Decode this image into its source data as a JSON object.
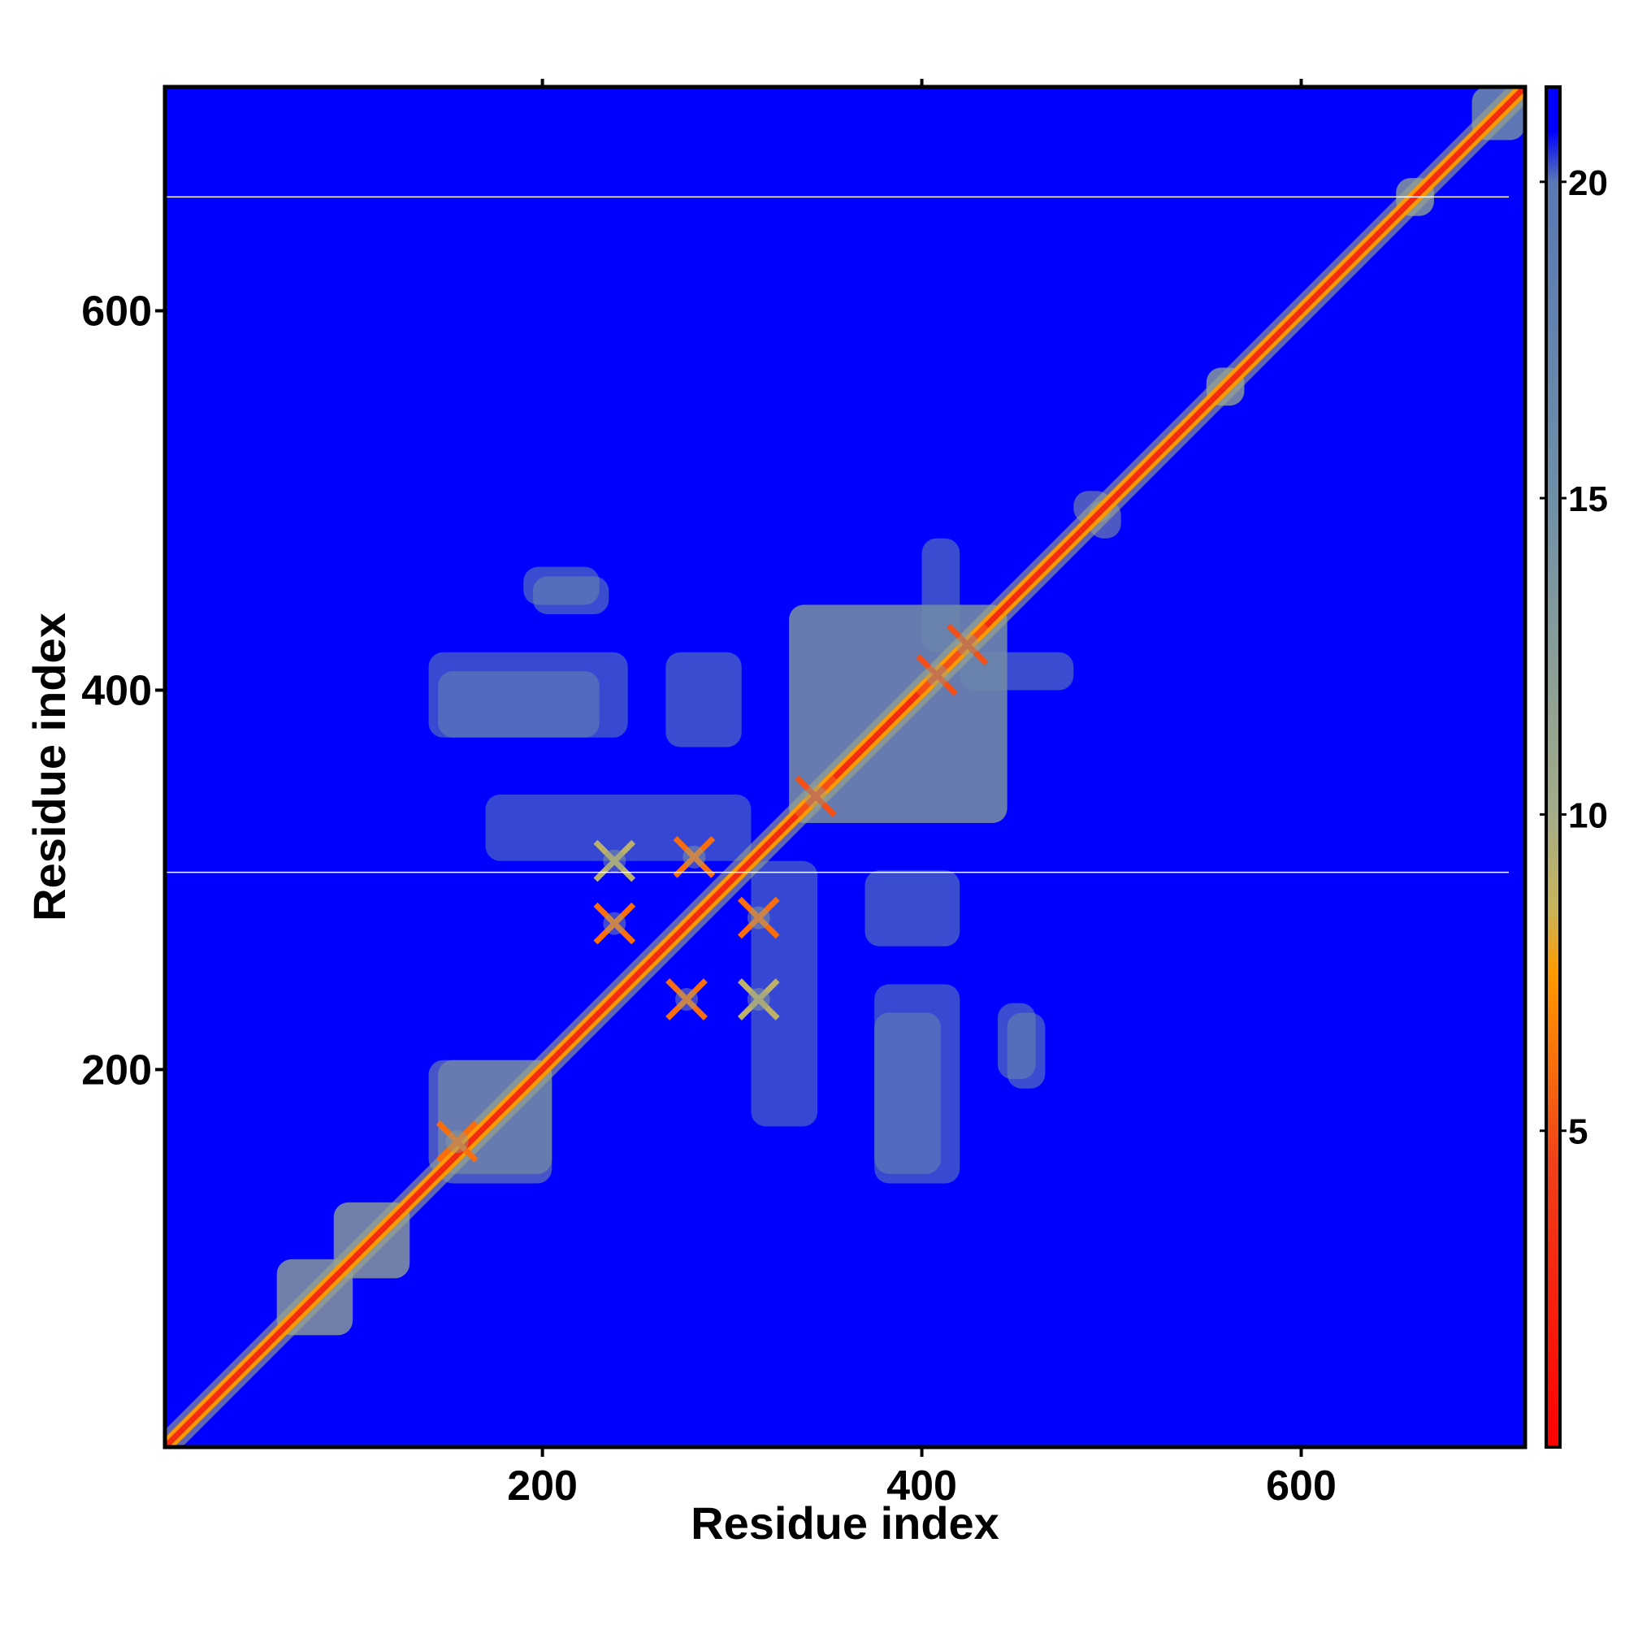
{
  "chart_data": {
    "type": "heatmap",
    "title": "",
    "xlabel": "Residue index",
    "ylabel": "Residue index",
    "xlim": [
      1,
      718
    ],
    "ylim": [
      1,
      718
    ],
    "x_ticks": [
      200,
      400,
      600
    ],
    "y_ticks": [
      200,
      400,
      600
    ],
    "colorbar": {
      "range": [
        0,
        21.5
      ],
      "ticks": [
        5,
        10,
        15,
        20
      ],
      "stops": [
        {
          "value": 0,
          "color": "#ff0000"
        },
        {
          "value": 4.5,
          "color": "#f0401a"
        },
        {
          "value": 7.5,
          "color": "#ff9a00"
        },
        {
          "value": 8.5,
          "color": "#c8b45a"
        },
        {
          "value": 10,
          "color": "#a4ac88"
        },
        {
          "value": 15,
          "color": "#6e8fa8"
        },
        {
          "value": 20,
          "color": "#5a78b4"
        },
        {
          "value": 20.8,
          "color": "#0000ff"
        }
      ]
    },
    "background_value": 21,
    "background_color": "#0000ff",
    "diagonal": {
      "from": 1,
      "to": 718,
      "value": 3
    },
    "blank_rows": [
      660,
      304
    ],
    "contact_regions": [
      {
        "x": [
          60,
          100
        ],
        "y": [
          60,
          100
        ],
        "value": 12
      },
      {
        "x": [
          90,
          130
        ],
        "y": [
          90,
          130
        ],
        "value": 12
      },
      {
        "x": [
          140,
          205
        ],
        "y": [
          145,
          205
        ],
        "value": 13
      },
      {
        "x": [
          330,
          445
        ],
        "y": [
          330,
          445
        ],
        "value": 13
      },
      {
        "x": [
          480,
          500
        ],
        "y": [
          488,
          505
        ],
        "value": 12
      },
      {
        "x": [
          550,
          570
        ],
        "y": [
          550,
          570
        ],
        "value": 12
      },
      {
        "x": [
          650,
          670
        ],
        "y": [
          650,
          670
        ],
        "value": 12
      },
      {
        "x": [
          690,
          718
        ],
        "y": [
          690,
          718
        ],
        "value": 14
      },
      {
        "x": [
          195,
          235
        ],
        "y": [
          440,
          460
        ],
        "value": 16
      },
      {
        "x": [
          140,
          245
        ],
        "y": [
          375,
          420
        ],
        "value": 17
      },
      {
        "x": [
          265,
          305
        ],
        "y": [
          370,
          420
        ],
        "value": 16
      },
      {
        "x": [
          310,
          345
        ],
        "y": [
          170,
          310
        ],
        "value": 18
      },
      {
        "x": [
          375,
          410
        ],
        "y": [
          145,
          230
        ],
        "value": 17
      },
      {
        "x": [
          445,
          465
        ],
        "y": [
          190,
          230
        ],
        "value": 16
      },
      {
        "x": [
          420,
          480
        ],
        "y": [
          400,
          420
        ],
        "value": 16
      }
    ],
    "cross_features": [
      {
        "x": 238,
        "y": 310,
        "value": 9
      },
      {
        "x": 238,
        "y": 277,
        "value": 6
      },
      {
        "x": 280,
        "y": 312,
        "value": 6
      },
      {
        "x": 314,
        "y": 280,
        "value": 6
      },
      {
        "x": 276,
        "y": 237,
        "value": 6
      },
      {
        "x": 314,
        "y": 237,
        "value": 9
      },
      {
        "x": 155,
        "y": 162,
        "value": 6
      },
      {
        "x": 344,
        "y": 344,
        "value": 5
      },
      {
        "x": 408,
        "y": 408,
        "value": 5
      },
      {
        "x": 424,
        "y": 424,
        "value": 5
      }
    ]
  }
}
